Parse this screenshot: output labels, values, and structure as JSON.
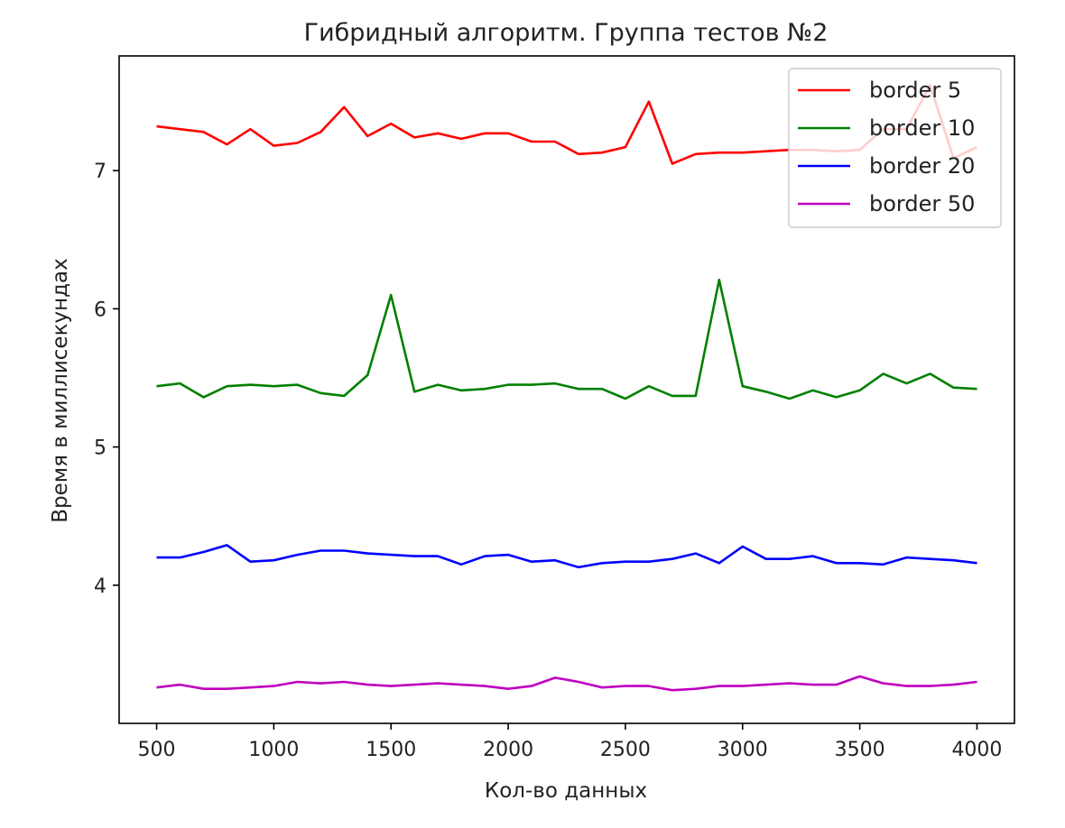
{
  "chart_data": {
    "type": "line",
    "title": "Гибридный алгоритм. Группа тестов №2",
    "xlabel": "Кол-во данных",
    "ylabel": "Время в миллисекундах",
    "xlim": [
      340,
      4160
    ],
    "ylim": [
      3.0,
      7.83
    ],
    "xticks": [
      500,
      1000,
      1500,
      2000,
      2500,
      3000,
      3500,
      4000
    ],
    "yticks": [
      4,
      5,
      6,
      7
    ],
    "grid": false,
    "legend": "top-right",
    "x": [
      500,
      600,
      700,
      800,
      900,
      1000,
      1100,
      1200,
      1300,
      1400,
      1500,
      1600,
      1700,
      1800,
      1900,
      2000,
      2100,
      2200,
      2300,
      2400,
      2500,
      2600,
      2700,
      2800,
      2900,
      3000,
      3100,
      3200,
      3300,
      3400,
      3500,
      3600,
      3700,
      3800,
      3900,
      4000
    ],
    "series": [
      {
        "name": "border 5",
        "color": "#ff0000",
        "values": [
          7.32,
          7.3,
          7.28,
          7.19,
          7.3,
          7.18,
          7.2,
          7.28,
          7.46,
          7.25,
          7.34,
          7.24,
          7.27,
          7.23,
          7.27,
          7.27,
          7.21,
          7.21,
          7.12,
          7.13,
          7.17,
          7.5,
          7.05,
          7.12,
          7.13,
          7.13,
          7.14,
          7.15,
          7.15,
          7.14,
          7.15,
          7.3,
          7.3,
          7.62,
          7.09,
          7.17
        ]
      },
      {
        "name": "border 10",
        "color": "#008000",
        "values": [
          5.44,
          5.46,
          5.36,
          5.44,
          5.45,
          5.44,
          5.45,
          5.39,
          5.37,
          5.52,
          6.1,
          5.4,
          5.45,
          5.41,
          5.42,
          5.45,
          5.45,
          5.46,
          5.42,
          5.42,
          5.35,
          5.44,
          5.37,
          5.37,
          6.21,
          5.44,
          5.4,
          5.35,
          5.41,
          5.36,
          5.41,
          5.53,
          5.46,
          5.53,
          5.43,
          5.42
        ]
      },
      {
        "name": "border 20",
        "color": "#0000ff",
        "values": [
          4.2,
          4.2,
          4.24,
          4.29,
          4.17,
          4.18,
          4.22,
          4.25,
          4.25,
          4.23,
          4.22,
          4.21,
          4.21,
          4.15,
          4.21,
          4.22,
          4.17,
          4.18,
          4.13,
          4.16,
          4.17,
          4.17,
          4.19,
          4.23,
          4.16,
          4.28,
          4.19,
          4.19,
          4.21,
          4.16,
          4.16,
          4.15,
          4.2,
          4.19,
          4.18,
          4.16
        ]
      },
      {
        "name": "border 50",
        "color": "#bf00bf",
        "values": [
          3.26,
          3.28,
          3.25,
          3.25,
          3.26,
          3.27,
          3.3,
          3.29,
          3.3,
          3.28,
          3.27,
          3.28,
          3.29,
          3.28,
          3.27,
          3.25,
          3.27,
          3.33,
          3.3,
          3.26,
          3.27,
          3.27,
          3.24,
          3.25,
          3.27,
          3.27,
          3.28,
          3.29,
          3.28,
          3.28,
          3.34,
          3.29,
          3.27,
          3.27,
          3.28,
          3.3
        ]
      }
    ]
  }
}
